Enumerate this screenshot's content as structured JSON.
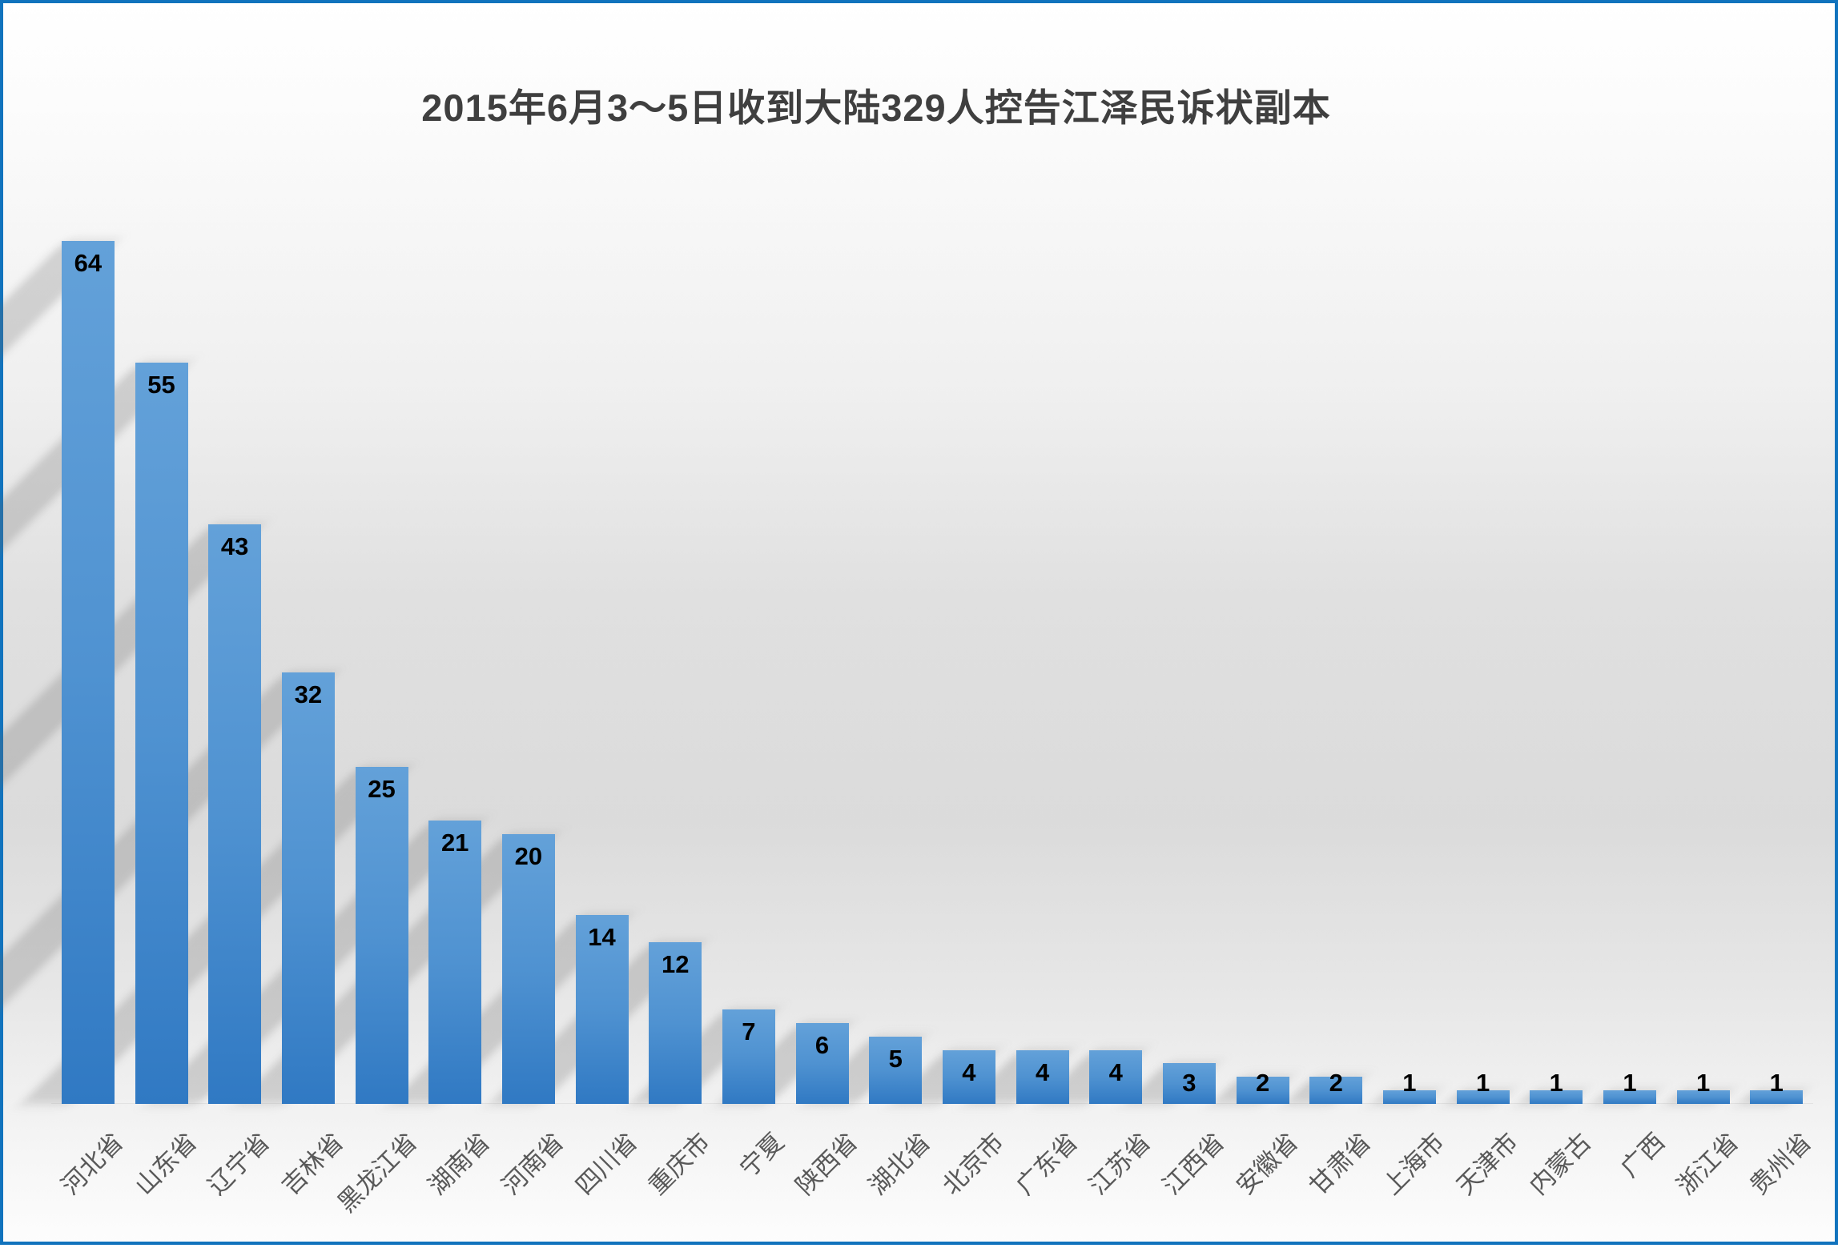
{
  "title": "2015年6月3～5日收到大陆329人控告江泽民诉状副本",
  "chart_data": {
    "type": "bar",
    "title": "2015年6月3～5日收到大陆329人控告江泽民诉状副本",
    "categories": [
      "河北省",
      "山东省",
      "辽宁省",
      "吉林省",
      "黑龙江省",
      "湖南省",
      "河南省",
      "四川省",
      "重庆市",
      "宁夏",
      "陕西省",
      "湖北省",
      "北京市",
      "广东省",
      "江苏省",
      "江西省",
      "安徽省",
      "甘肃省",
      "上海市",
      "天津市",
      "内蒙古",
      "广西",
      "浙江省",
      "贵州省"
    ],
    "values": [
      64,
      55,
      43,
      32,
      25,
      21,
      20,
      14,
      12,
      7,
      6,
      5,
      4,
      4,
      4,
      3,
      2,
      2,
      1,
      1,
      1,
      1,
      1,
      1
    ],
    "total": 329,
    "xlabel": "",
    "ylabel": "",
    "ylim": [
      0,
      78
    ],
    "grid": false,
    "legend": false,
    "data_labels": true,
    "colors": {
      "bar_top": "#63A1D9",
      "bar_mid": "#4F92D1",
      "bar_bottom": "#3079C3",
      "value_label": "#000000",
      "category_label": "#595959",
      "title_text": "#3F3F3F",
      "frame_border": "#1173BD"
    }
  }
}
